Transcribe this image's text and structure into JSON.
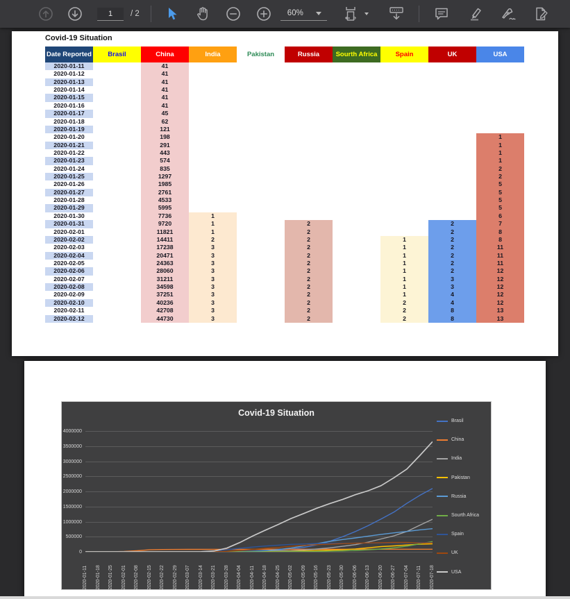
{
  "toolbar": {
    "page_input_value": "1",
    "page_count_label": "/ 2",
    "zoom_level": "60%",
    "icons": {
      "previous_page": "circle-arrow-up",
      "next_page": "circle-arrow-down",
      "select_tool": "cursor-arrow",
      "pan_tool": "hand",
      "zoom_out": "circle-minus",
      "zoom_in": "circle-plus",
      "zoom_menu": "chevron-down",
      "fit_width": "page-fit-width",
      "scroll_mode": "page-scrolling",
      "comment": "speech-bubble",
      "highlight": "highlighter-pen",
      "sign": "fountain-pen",
      "edit": "page-pencil"
    }
  },
  "page1": {
    "title": "Covid-19 Situation",
    "table": {
      "columns": [
        {
          "label": "Date Reported",
          "header_bg": "#1F4677",
          "header_fg": "#FFFFFF",
          "cell_bg": "#C9D7F1"
        },
        {
          "label": "Brasil",
          "header_bg": "#FFFF00",
          "header_fg": "#1414E6",
          "cell_bg": ""
        },
        {
          "label": "China",
          "header_bg": "#FE0000",
          "header_fg": "#FFFFFF",
          "cell_bg": "#F2CDCD"
        },
        {
          "label": "India",
          "header_bg": "#FFA011",
          "header_fg": "#FFFFFF",
          "cell_bg": "#FDE9D0"
        },
        {
          "label": "Pakistan",
          "header_bg": "#FFFFFF",
          "header_fg": "#2E8B57",
          "cell_bg": ""
        },
        {
          "label": "Russia",
          "header_bg": "#C00000",
          "header_fg": "#FFFFFF",
          "cell_bg": "#E3B7AC"
        },
        {
          "label": "Sourth Africa",
          "header_bg": "#3D6B21",
          "header_fg": "#FFFF00",
          "cell_bg": ""
        },
        {
          "label": "Spain",
          "header_bg": "#FFFF00",
          "header_fg": "#FE0000",
          "cell_bg": "#FDF4D5"
        },
        {
          "label": "UK",
          "header_bg": "#C00000",
          "header_fg": "#FFFFFF",
          "cell_bg": "#6D9EEB"
        },
        {
          "label": "USA",
          "header_bg": "#4A86E8",
          "header_fg": "#FFFFFF",
          "cell_bg": "#DC7E6B"
        }
      ],
      "rows": [
        [
          "2020-01-11",
          "",
          "41",
          "",
          "",
          "",
          "",
          "",
          "",
          ""
        ],
        [
          "2020-01-12",
          "",
          "41",
          "",
          "",
          "",
          "",
          "",
          "",
          ""
        ],
        [
          "2020-01-13",
          "",
          "41",
          "",
          "",
          "",
          "",
          "",
          "",
          ""
        ],
        [
          "2020-01-14",
          "",
          "41",
          "",
          "",
          "",
          "",
          "",
          "",
          ""
        ],
        [
          "2020-01-15",
          "",
          "41",
          "",
          "",
          "",
          "",
          "",
          "",
          ""
        ],
        [
          "2020-01-16",
          "",
          "41",
          "",
          "",
          "",
          "",
          "",
          "",
          ""
        ],
        [
          "2020-01-17",
          "",
          "45",
          "",
          "",
          "",
          "",
          "",
          "",
          ""
        ],
        [
          "2020-01-18",
          "",
          "62",
          "",
          "",
          "",
          "",
          "",
          "",
          ""
        ],
        [
          "2020-01-19",
          "",
          "121",
          "",
          "",
          "",
          "",
          "",
          "",
          ""
        ],
        [
          "2020-01-20",
          "",
          "198",
          "",
          "",
          "",
          "",
          "",
          "",
          "1"
        ],
        [
          "2020-01-21",
          "",
          "291",
          "",
          "",
          "",
          "",
          "",
          "",
          "1"
        ],
        [
          "2020-01-22",
          "",
          "443",
          "",
          "",
          "",
          "",
          "",
          "",
          "1"
        ],
        [
          "2020-01-23",
          "",
          "574",
          "",
          "",
          "",
          "",
          "",
          "",
          "1"
        ],
        [
          "2020-01-24",
          "",
          "835",
          "",
          "",
          "",
          "",
          "",
          "",
          "2"
        ],
        [
          "2020-01-25",
          "",
          "1297",
          "",
          "",
          "",
          "",
          "",
          "",
          "2"
        ],
        [
          "2020-01-26",
          "",
          "1985",
          "",
          "",
          "",
          "",
          "",
          "",
          "5"
        ],
        [
          "2020-01-27",
          "",
          "2761",
          "",
          "",
          "",
          "",
          "",
          "",
          "5"
        ],
        [
          "2020-01-28",
          "",
          "4533",
          "",
          "",
          "",
          "",
          "",
          "",
          "5"
        ],
        [
          "2020-01-29",
          "",
          "5995",
          "",
          "",
          "",
          "",
          "",
          "",
          "5"
        ],
        [
          "2020-01-30",
          "",
          "7736",
          "1",
          "",
          "",
          "",
          "",
          "",
          "6"
        ],
        [
          "2020-01-31",
          "",
          "9720",
          "1",
          "",
          "2",
          "",
          "",
          "2",
          "7"
        ],
        [
          "2020-02-01",
          "",
          "11821",
          "1",
          "",
          "2",
          "",
          "",
          "2",
          "8"
        ],
        [
          "2020-02-02",
          "",
          "14411",
          "2",
          "",
          "2",
          "",
          "1",
          "2",
          "8"
        ],
        [
          "2020-02-03",
          "",
          "17238",
          "3",
          "",
          "2",
          "",
          "1",
          "2",
          "11"
        ],
        [
          "2020-02-04",
          "",
          "20471",
          "3",
          "",
          "2",
          "",
          "1",
          "2",
          "11"
        ],
        [
          "2020-02-05",
          "",
          "24363",
          "3",
          "",
          "2",
          "",
          "1",
          "2",
          "11"
        ],
        [
          "2020-02-06",
          "",
          "28060",
          "3",
          "",
          "2",
          "",
          "1",
          "2",
          "12"
        ],
        [
          "2020-02-07",
          "",
          "31211",
          "3",
          "",
          "2",
          "",
          "1",
          "3",
          "12"
        ],
        [
          "2020-02-08",
          "",
          "34598",
          "3",
          "",
          "2",
          "",
          "1",
          "3",
          "12"
        ],
        [
          "2020-02-09",
          "",
          "37251",
          "3",
          "",
          "2",
          "",
          "1",
          "4",
          "12"
        ],
        [
          "2020-02-10",
          "",
          "40236",
          "3",
          "",
          "2",
          "",
          "2",
          "4",
          "12"
        ],
        [
          "2020-02-11",
          "",
          "42708",
          "3",
          "",
          "2",
          "",
          "2",
          "8",
          "13"
        ],
        [
          "2020-02-12",
          "",
          "44730",
          "3",
          "",
          "2",
          "",
          "2",
          "8",
          "13"
        ]
      ]
    }
  },
  "chart_data": {
    "type": "line",
    "title": "Covid-19 Situation",
    "xlabel": "",
    "ylabel": "",
    "ylim": [
      0,
      4000000
    ],
    "ytick_step": 500000,
    "grid": true,
    "legend_position": "right",
    "x": [
      "2020-01-11",
      "2020-01-18",
      "2020-01-25",
      "2020-02-01",
      "2020-02-08",
      "2020-02-15",
      "2020-02-22",
      "2020-02-29",
      "2020-03-07",
      "2020-03-14",
      "2020-03-21",
      "2020-03-28",
      "2020-04-04",
      "2020-04-11",
      "2020-04-18",
      "2020-04-25",
      "2020-05-02",
      "2020-05-09",
      "2020-05-16",
      "2020-05-23",
      "2020-05-30",
      "2020-06-06",
      "2020-06-13",
      "2020-06-20",
      "2020-06-27",
      "2020-07-04",
      "2020-07-11",
      "2020-07-18"
    ],
    "series": [
      {
        "name": "Brasil",
        "color": "#4472C4",
        "values": [
          0,
          0,
          0,
          0,
          0,
          0,
          0,
          0,
          0,
          100,
          1000,
          3900,
          10300,
          20700,
          36600,
          58500,
          92000,
          145000,
          233000,
          347000,
          499000,
          672000,
          867000,
          1085000,
          1315000,
          1604000,
          1866000,
          2098000
        ]
      },
      {
        "name": "China",
        "color": "#ED7D31",
        "values": [
          41,
          62,
          1297,
          11821,
          34598,
          66492,
          76936,
          79251,
          80695,
          80844,
          81416,
          82000,
          82543,
          83369,
          84201,
          84338,
          84393,
          84415,
          84038,
          84084,
          84128,
          84177,
          84216,
          84542,
          84725,
          84857,
          85117,
          85314
        ]
      },
      {
        "name": "India",
        "color": "#A5A5A5",
        "values": [
          0,
          0,
          0,
          1,
          3,
          3,
          3,
          3,
          34,
          102,
          315,
          987,
          3588,
          8446,
          16116,
          26496,
          37336,
          62939,
          90927,
          131868,
          182143,
          236657,
          320922,
          425282,
          528859,
          673165,
          878254,
          1077618
        ]
      },
      {
        "name": "Pakistan",
        "color": "#FFC000",
        "values": [
          0,
          0,
          0,
          0,
          0,
          0,
          0,
          2,
          7,
          31,
          666,
          1526,
          2818,
          5230,
          8348,
          12723,
          18770,
          29465,
          42125,
          52437,
          66457,
          93983,
          132405,
          171666,
          195745,
          225283,
          251625,
          261917
        ]
      },
      {
        "name": "Russia",
        "color": "#5B9BD5",
        "values": [
          0,
          0,
          0,
          2,
          2,
          2,
          2,
          2,
          13,
          59,
          306,
          1264,
          4731,
          13584,
          36793,
          74588,
          124054,
          198676,
          272043,
          344481,
          405843,
          458689,
          520129,
          576952,
          626779,
          674515,
          727162,
          765437
        ]
      },
      {
        "name": "Sourth Africa",
        "color": "#70AD47",
        "values": [
          0,
          0,
          0,
          0,
          0,
          0,
          0,
          0,
          0,
          17,
          205,
          1170,
          1585,
          2028,
          3034,
          4361,
          6336,
          9420,
          14355,
          21343,
          30967,
          45973,
          65736,
          92681,
          131800,
          187977,
          264184,
          337594
        ]
      },
      {
        "name": "Spain",
        "color": "#2F5597",
        "values": [
          0,
          0,
          0,
          0,
          1,
          2,
          2,
          45,
          430,
          5753,
          24926,
          72248,
          117710,
          157022,
          191726,
          219764,
          245567,
          256855,
          274367,
          280117,
          282852,
          288058,
          290685,
          292655,
          295549,
          297625,
          300136,
          303033
        ]
      },
      {
        "name": "UK",
        "color": "#9E480E",
        "values": [
          0,
          0,
          0,
          2,
          3,
          9,
          13,
          20,
          206,
          1140,
          5018,
          17089,
          41903,
          78991,
          114217,
          143464,
          182260,
          211364,
          236711,
          254195,
          271222,
          284868,
          294375,
          301815,
          309360,
          313470,
          289150,
          294066
        ]
      },
      {
        "name": "USA",
        "color": "#C9C9C9",
        "width": 1.7,
        "values": [
          0,
          0,
          2,
          8,
          12,
          15,
          35,
          68,
          435,
          2726,
          24583,
          121478,
          305755,
          519458,
          716152,
          905364,
          1103466,
          1271645,
          1443397,
          1595885,
          1734040,
          1891690,
          2023347,
          2191052,
          2452048,
          2739879,
          3184573,
          3647715
        ]
      }
    ]
  }
}
